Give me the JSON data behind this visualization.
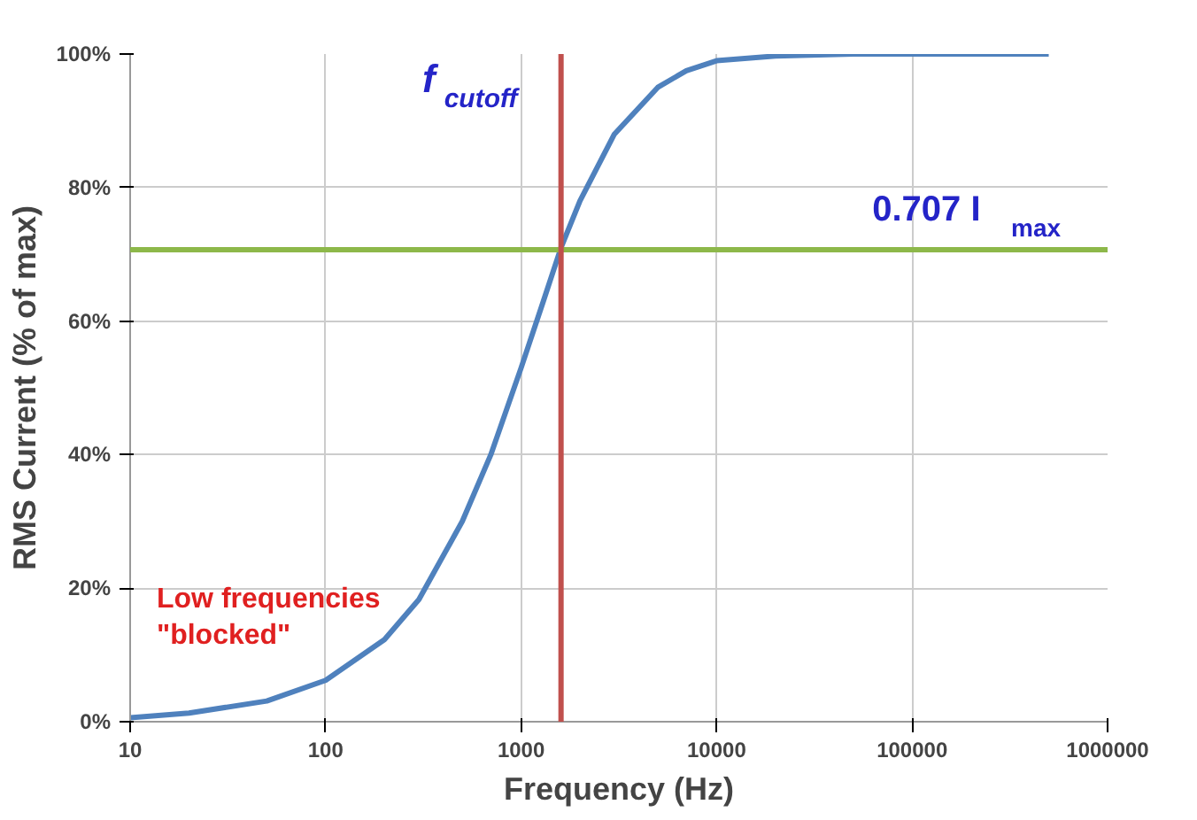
{
  "chart_data": {
    "type": "line",
    "xlabel": "Frequency (Hz)",
    "ylabel": "RMS Current (% of max)",
    "x": [
      10,
      20,
      50,
      100,
      200,
      300,
      500,
      700,
      1000,
      1300,
      1600,
      2000,
      3000,
      5000,
      7000,
      10000,
      20000,
      50000,
      100000,
      500000
    ],
    "series": [
      {
        "color": "#4f81bd",
        "values": [
          0.6,
          1.3,
          3.1,
          6.2,
          12.3,
          18.3,
          30,
          40,
          53,
          63,
          71,
          78,
          88,
          95,
          97.5,
          99,
          99.7,
          100,
          100,
          100
        ]
      }
    ],
    "log": "x",
    "xlim": [
      10,
      1000000
    ],
    "xticks": [
      10,
      100,
      1000,
      10000,
      100000,
      1000000
    ],
    "ylim": [
      0,
      100
    ],
    "yticks": [
      {
        "value": 0,
        "label": "0%"
      },
      {
        "value": 20,
        "label": "20%"
      },
      {
        "value": 40,
        "label": "40%"
      },
      {
        "value": 60,
        "label": "60%"
      },
      {
        "value": 80,
        "label": "80%"
      },
      {
        "value": 100,
        "label": "100%"
      }
    ],
    "grid": true,
    "ref_lines": [
      {
        "axis": "y",
        "value": 70.7,
        "label": "0.707 I$_{max}$",
        "color": "#8db84a"
      },
      {
        "axis": "x",
        "value": 1600,
        "label": "f$_{cutoff}$",
        "color": "#c0504d"
      }
    ],
    "annotations": [
      "Low frequencies\n\"blocked\""
    ]
  }
}
